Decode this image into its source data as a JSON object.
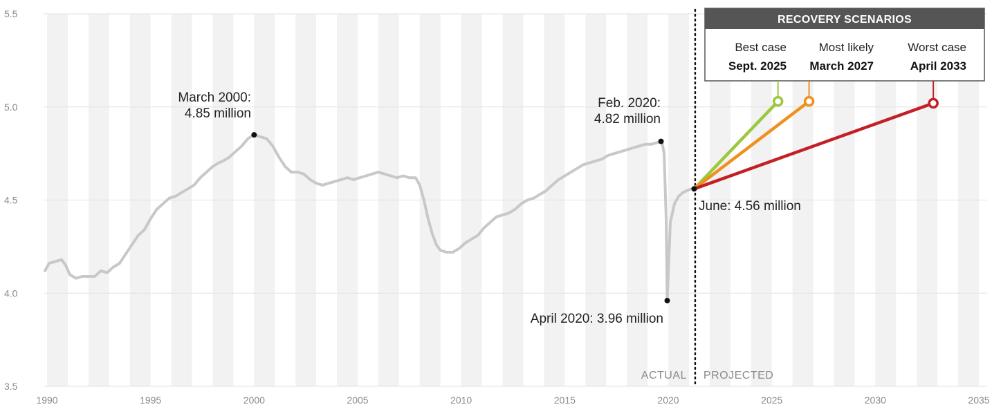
{
  "chart_data": {
    "type": "line",
    "title": "",
    "xlabel": "",
    "ylabel": "",
    "xlim": [
      1989.8,
      2035.2
    ],
    "ylim": [
      3.5,
      5.5
    ],
    "grid": true,
    "x_ticks": [
      "1990",
      "1995",
      "2000",
      "2005",
      "2010",
      "2015",
      "2020",
      "2025",
      "2030",
      "2035"
    ],
    "y_ticks": [
      "5.5",
      "5.0",
      "4.5",
      "4.0",
      "3.5"
    ],
    "series": [
      {
        "color": "#c8c8c8",
        "points": [
          [
            1989.9,
            4.12
          ],
          [
            1990.1,
            4.16
          ],
          [
            1990.4,
            4.17
          ],
          [
            1990.7,
            4.18
          ],
          [
            1990.9,
            4.15
          ],
          [
            1991.1,
            4.1
          ],
          [
            1991.4,
            4.08
          ],
          [
            1991.7,
            4.09
          ],
          [
            1992.0,
            4.09
          ],
          [
            1992.3,
            4.09
          ],
          [
            1992.6,
            4.12
          ],
          [
            1992.9,
            4.11
          ],
          [
            1993.2,
            4.14
          ],
          [
            1993.5,
            4.16
          ],
          [
            1993.8,
            4.21
          ],
          [
            1994.1,
            4.26
          ],
          [
            1994.4,
            4.31
          ],
          [
            1994.7,
            4.34
          ],
          [
            1995.0,
            4.4
          ],
          [
            1995.3,
            4.45
          ],
          [
            1995.6,
            4.48
          ],
          [
            1995.9,
            4.51
          ],
          [
            1996.2,
            4.52
          ],
          [
            1996.5,
            4.54
          ],
          [
            1996.8,
            4.56
          ],
          [
            1997.1,
            4.58
          ],
          [
            1997.4,
            4.62
          ],
          [
            1997.7,
            4.65
          ],
          [
            1998.0,
            4.68
          ],
          [
            1998.3,
            4.7
          ],
          [
            1998.5,
            4.71
          ],
          [
            1998.8,
            4.73
          ],
          [
            1999.1,
            4.76
          ],
          [
            1999.4,
            4.79
          ],
          [
            1999.7,
            4.83
          ],
          [
            2000.0,
            4.85
          ],
          [
            2000.3,
            4.84
          ],
          [
            2000.6,
            4.83
          ],
          [
            2000.9,
            4.79
          ],
          [
            2001.2,
            4.73
          ],
          [
            2001.5,
            4.68
          ],
          [
            2001.8,
            4.65
          ],
          [
            2002.1,
            4.65
          ],
          [
            2002.4,
            4.64
          ],
          [
            2002.7,
            4.61
          ],
          [
            2003.0,
            4.59
          ],
          [
            2003.3,
            4.58
          ],
          [
            2003.6,
            4.59
          ],
          [
            2003.9,
            4.6
          ],
          [
            2004.2,
            4.61
          ],
          [
            2004.5,
            4.62
          ],
          [
            2004.8,
            4.61
          ],
          [
            2005.1,
            4.62
          ],
          [
            2005.4,
            4.63
          ],
          [
            2005.7,
            4.64
          ],
          [
            2006.0,
            4.65
          ],
          [
            2006.3,
            4.64
          ],
          [
            2006.6,
            4.63
          ],
          [
            2006.9,
            4.62
          ],
          [
            2007.2,
            4.63
          ],
          [
            2007.5,
            4.62
          ],
          [
            2007.8,
            4.62
          ],
          [
            2008.0,
            4.58
          ],
          [
            2008.2,
            4.5
          ],
          [
            2008.4,
            4.4
          ],
          [
            2008.6,
            4.32
          ],
          [
            2008.8,
            4.26
          ],
          [
            2009.0,
            4.23
          ],
          [
            2009.3,
            4.22
          ],
          [
            2009.6,
            4.22
          ],
          [
            2009.9,
            4.24
          ],
          [
            2010.2,
            4.27
          ],
          [
            2010.5,
            4.29
          ],
          [
            2010.8,
            4.31
          ],
          [
            2011.1,
            4.35
          ],
          [
            2011.4,
            4.38
          ],
          [
            2011.7,
            4.41
          ],
          [
            2012.0,
            4.42
          ],
          [
            2012.3,
            4.43
          ],
          [
            2012.6,
            4.45
          ],
          [
            2012.9,
            4.48
          ],
          [
            2013.2,
            4.5
          ],
          [
            2013.5,
            4.51
          ],
          [
            2013.8,
            4.53
          ],
          [
            2014.1,
            4.55
          ],
          [
            2014.4,
            4.58
          ],
          [
            2014.7,
            4.61
          ],
          [
            2015.0,
            4.63
          ],
          [
            2015.3,
            4.65
          ],
          [
            2015.6,
            4.67
          ],
          [
            2015.9,
            4.69
          ],
          [
            2016.2,
            4.7
          ],
          [
            2016.5,
            4.71
          ],
          [
            2016.8,
            4.72
          ],
          [
            2017.1,
            4.74
          ],
          [
            2017.4,
            4.75
          ],
          [
            2017.7,
            4.76
          ],
          [
            2018.0,
            4.77
          ],
          [
            2018.3,
            4.78
          ],
          [
            2018.6,
            4.79
          ],
          [
            2018.9,
            4.8
          ],
          [
            2019.2,
            4.8
          ],
          [
            2019.5,
            4.81
          ],
          [
            2019.7,
            4.81
          ],
          [
            2019.8,
            4.75
          ],
          [
            2019.9,
            4.4
          ],
          [
            2019.95,
            3.96
          ],
          [
            2020.1,
            4.38
          ],
          [
            2020.3,
            4.48
          ],
          [
            2020.5,
            4.52
          ],
          [
            2020.7,
            4.54
          ],
          [
            2020.9,
            4.55
          ],
          [
            2021.1,
            4.56
          ],
          [
            2021.25,
            4.56
          ]
        ]
      }
    ],
    "projections": [
      {
        "label": "Best case",
        "date": "Sept. 2025",
        "color": "#9bc83c",
        "from": [
          2021.25,
          4.56
        ],
        "to": [
          2025.3,
          5.03
        ]
      },
      {
        "label": "Most likely",
        "date": "March 2027",
        "color": "#f0901e",
        "from": [
          2021.25,
          4.56
        ],
        "to": [
          2026.8,
          5.03
        ]
      },
      {
        "label": "Worst case",
        "date": "April 2033",
        "color": "#c32026",
        "from": [
          2021.25,
          4.56
        ],
        "to": [
          2032.8,
          5.02
        ]
      }
    ],
    "annotations": [
      {
        "lines": [
          "March 2000:",
          "4.85 million"
        ],
        "point": [
          2000.0,
          4.85
        ]
      },
      {
        "lines": [
          "Feb. 2020:",
          "4.82 million"
        ],
        "point": [
          2019.65,
          4.815
        ]
      },
      {
        "lines": [
          "April 2020: 3.96 million"
        ],
        "point": [
          2019.95,
          3.96
        ]
      },
      {
        "lines": [
          "June: 4.56 million"
        ],
        "point": [
          2021.25,
          4.56
        ]
      }
    ],
    "divider_x": 2021.3,
    "zone_left": "ACTUAL",
    "zone_right": "PROJECTED",
    "scenarios_title": "RECOVERY SCENARIOS"
  }
}
